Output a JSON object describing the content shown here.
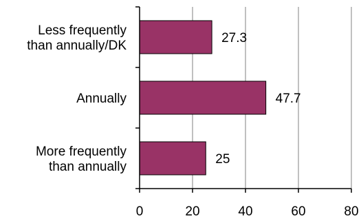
{
  "chart_data": {
    "type": "bar",
    "orientation": "horizontal",
    "categories": [
      [
        "Less frequently",
        "than annually/DK"
      ],
      [
        "Annually"
      ],
      [
        "More frequently",
        "than annually"
      ]
    ],
    "values": [
      27.3,
      47.7,
      25
    ],
    "data_labels": [
      "27.3",
      "47.7",
      "25"
    ],
    "xlim": [
      0,
      80
    ],
    "xticks": [
      0,
      20,
      40,
      60,
      80
    ],
    "xtick_labels": [
      "0",
      "20",
      "40",
      "60",
      "80"
    ],
    "grid": "vertical",
    "legend": "none",
    "colors": {
      "bar_fill": "#993366",
      "bar_stroke": "#000000",
      "axis": "#000000",
      "grid": "#808080",
      "text": "#000000"
    }
  }
}
